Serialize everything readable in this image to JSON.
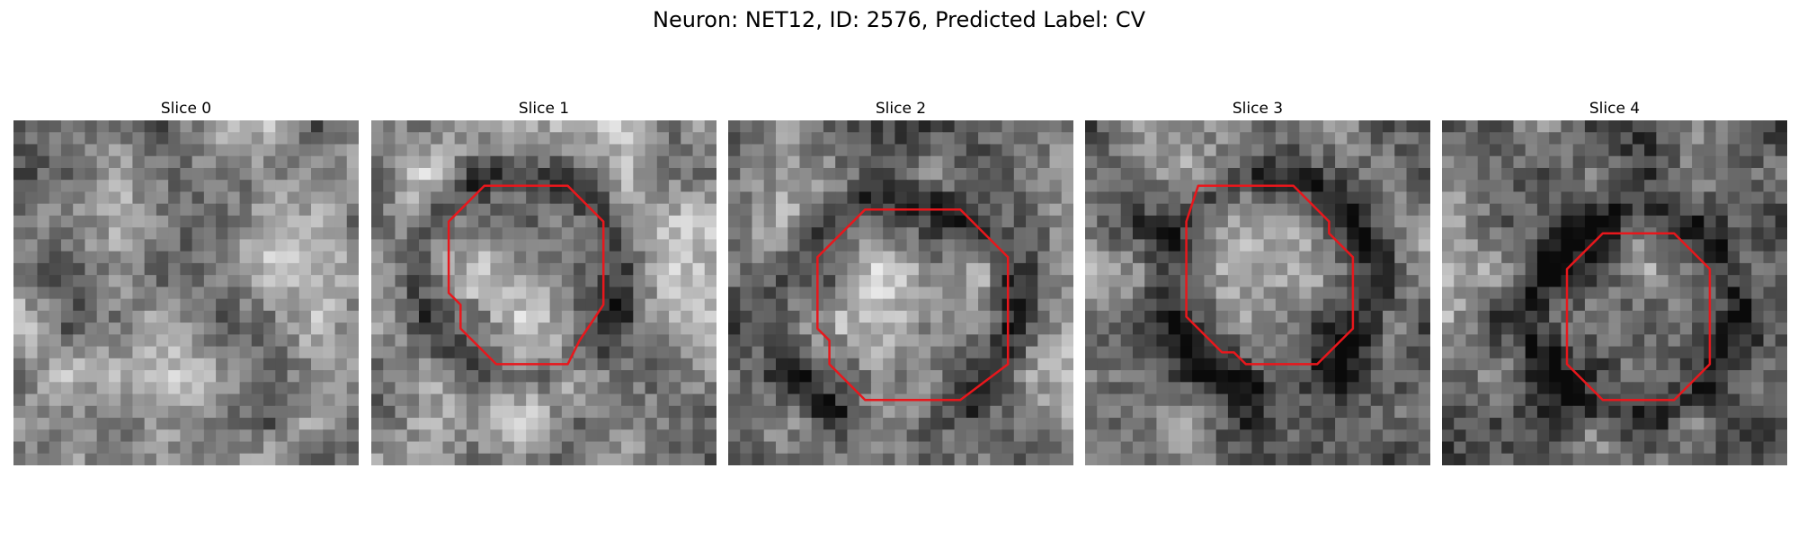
{
  "figure": {
    "suptitle": "Neuron: NET12, ID: 2576, Predicted Label: CV"
  },
  "panels": [
    {
      "title": "Slice 0",
      "has_contour": false,
      "seed": 11,
      "base": 140,
      "contour": []
    },
    {
      "title": "Slice 1",
      "has_contour": true,
      "seed": 23,
      "base": 150,
      "contour": [
        [
          10.5,
          5.5
        ],
        [
          16.5,
          5.5
        ],
        [
          19.5,
          8.5
        ],
        [
          19.5,
          15.5
        ],
        [
          17.5,
          18.5
        ],
        [
          16.5,
          20.5
        ],
        [
          10.5,
          20.5
        ],
        [
          7.5,
          17.5
        ],
        [
          7.5,
          15.5
        ],
        [
          6.5,
          14.5
        ],
        [
          6.5,
          8.5
        ],
        [
          9.5,
          5.5
        ]
      ]
    },
    {
      "title": "Slice 2",
      "has_contour": true,
      "seed": 37,
      "base": 130,
      "contour": [
        [
          11.5,
          7.5
        ],
        [
          19.5,
          7.5
        ],
        [
          23.5,
          11.5
        ],
        [
          23.5,
          20.5
        ],
        [
          19.5,
          23.5
        ],
        [
          11.5,
          23.5
        ],
        [
          8.5,
          20.5
        ],
        [
          8.5,
          18.5
        ],
        [
          7.5,
          17.5
        ],
        [
          7.5,
          11.5
        ]
      ]
    },
    {
      "title": "Slice 3",
      "has_contour": true,
      "seed": 51,
      "base": 110,
      "contour": [
        [
          9.5,
          5.5
        ],
        [
          17.5,
          5.5
        ],
        [
          20.5,
          8.5
        ],
        [
          20.5,
          9.5
        ],
        [
          22.5,
          11.5
        ],
        [
          22.5,
          17.5
        ],
        [
          19.5,
          20.5
        ],
        [
          13.5,
          20.5
        ],
        [
          12.5,
          19.5
        ],
        [
          11.5,
          19.5
        ],
        [
          8.5,
          16.5
        ],
        [
          8.5,
          8.5
        ]
      ]
    },
    {
      "title": "Slice 4",
      "has_contour": true,
      "seed": 67,
      "base": 115,
      "contour": [
        [
          13.5,
          9.5
        ],
        [
          19.5,
          9.5
        ],
        [
          22.5,
          12.5
        ],
        [
          22.5,
          20.5
        ],
        [
          19.5,
          23.5
        ],
        [
          13.5,
          23.5
        ],
        [
          10.5,
          20.5
        ],
        [
          10.5,
          12.5
        ]
      ]
    }
  ],
  "style": {
    "contour_color": "#e8171c"
  }
}
